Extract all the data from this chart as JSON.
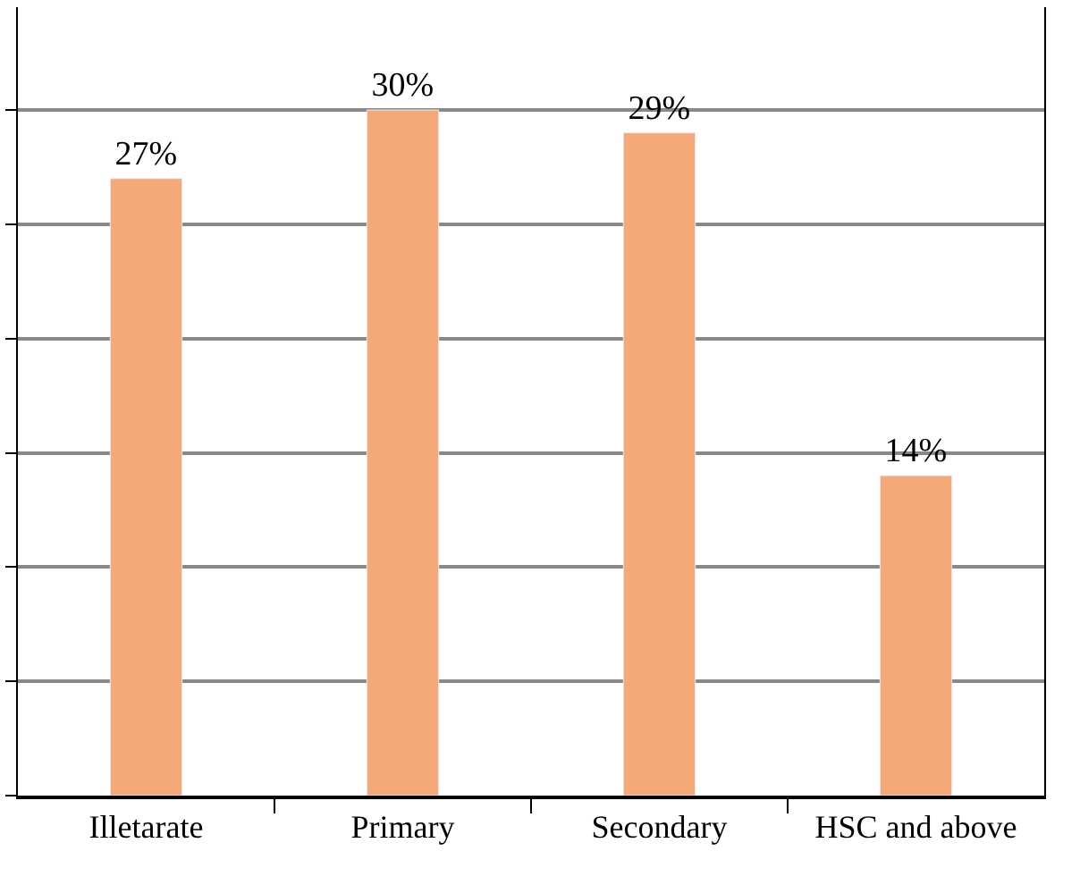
{
  "chart_data": {
    "type": "bar",
    "categories": [
      "Illetarate",
      "Primary",
      "Secondary",
      "HSC and above"
    ],
    "values": [
      27,
      30,
      29,
      14
    ],
    "color": "#f5a878",
    "value_labels": [
      "27%",
      "30%",
      "29%",
      "14%"
    ],
    "ylim": [
      0,
      34.5
    ],
    "yticks": [
      {
        "value": 0,
        "label": null
      },
      {
        "value": 5,
        "label": null
      },
      {
        "value": 10,
        "label": null
      },
      {
        "value": 15,
        "label": null
      },
      {
        "value": 20,
        "label": null
      },
      {
        "value": 25,
        "label": null
      },
      {
        "value": 30,
        "label": null
      }
    ],
    "grid": "y",
    "tick_labels": "x",
    "legend": false
  }
}
